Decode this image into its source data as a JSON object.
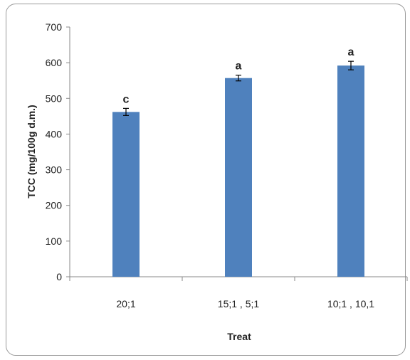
{
  "chart_data": {
    "type": "bar",
    "title": "",
    "xlabel": "Treat",
    "ylabel": "TCC (mg/100g d.m.)",
    "ylim": [
      0,
      700
    ],
    "yticks": [
      0,
      100,
      200,
      300,
      400,
      500,
      600,
      700
    ],
    "categories": [
      "20;1",
      "15;1 , 5;1",
      "10;1 , 10,1"
    ],
    "values": [
      462,
      557,
      592
    ],
    "errors": [
      10,
      8,
      12
    ],
    "significance": [
      "c",
      "a",
      "a"
    ],
    "bar_color": "#4F81BD",
    "grid": false,
    "legend": "none"
  }
}
